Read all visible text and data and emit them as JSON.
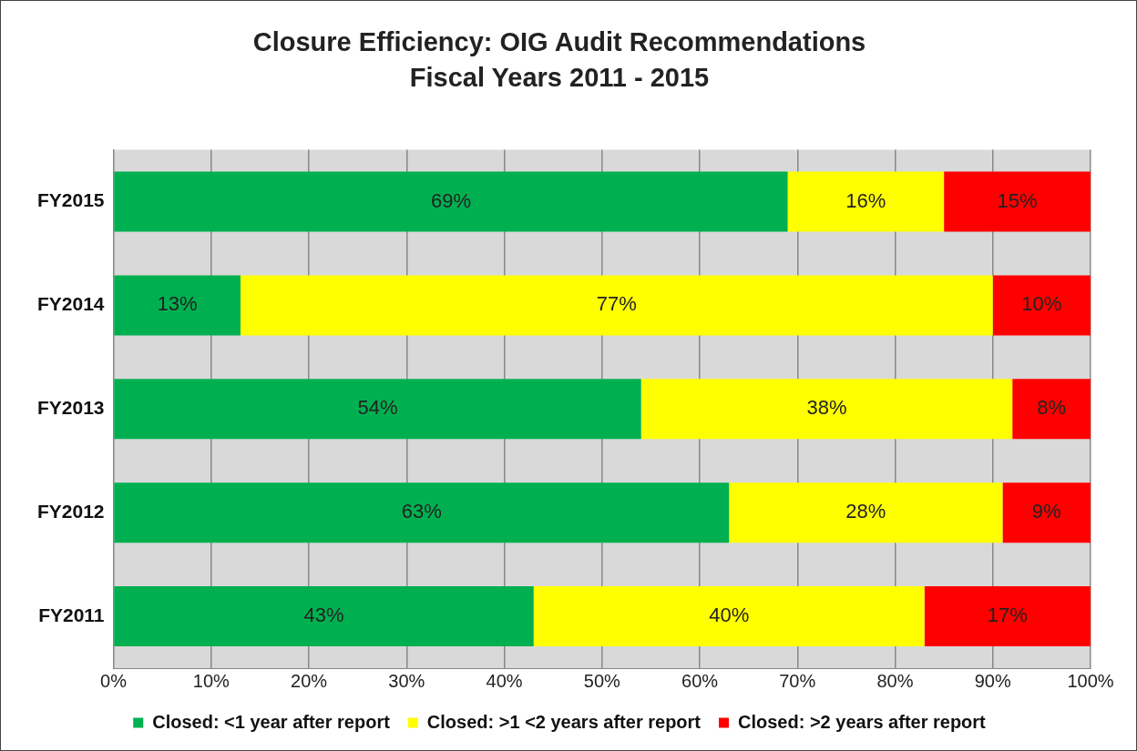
{
  "chart_data": {
    "type": "bar",
    "orientation": "horizontal",
    "stacked": true,
    "title": "Closure Efficiency: OIG Audit Recommendations",
    "subtitle": "Fiscal Years 2011 - 2015",
    "categories": [
      "FY2015",
      "FY2014",
      "FY2013",
      "FY2012",
      "FY2011"
    ],
    "series": [
      {
        "name": "Closed: <1 year after report",
        "color": "#00b050",
        "values": [
          69,
          13,
          54,
          63,
          43
        ],
        "value_labels": [
          "69%",
          "13%",
          "54%",
          "63%",
          "43%"
        ]
      },
      {
        "name": "Closed: >1 <2 years after report",
        "color": "#ffff00",
        "values": [
          16,
          77,
          38,
          28,
          40
        ],
        "value_labels": [
          "16%",
          "77%",
          "38%",
          "28%",
          "40%"
        ]
      },
      {
        "name": "Closed: >2 years after report",
        "color": "#ff0000",
        "values": [
          15,
          10,
          8,
          9,
          17
        ],
        "value_labels": [
          "15%",
          "10%",
          "8%",
          "9%",
          "17%"
        ]
      }
    ],
    "xlim": [
      0,
      100
    ],
    "xticks": [
      {
        "value": 0,
        "label": "0%"
      },
      {
        "value": 10,
        "label": "10%"
      },
      {
        "value": 20,
        "label": "20%"
      },
      {
        "value": 30,
        "label": "30%"
      },
      {
        "value": 40,
        "label": "40%"
      },
      {
        "value": 50,
        "label": "50%"
      },
      {
        "value": 60,
        "label": "60%"
      },
      {
        "value": 70,
        "label": "70%"
      },
      {
        "value": 80,
        "label": "80%"
      },
      {
        "value": 90,
        "label": "90%"
      },
      {
        "value": 100,
        "label": "100%"
      }
    ],
    "grid": "x",
    "legend": "bottom"
  }
}
